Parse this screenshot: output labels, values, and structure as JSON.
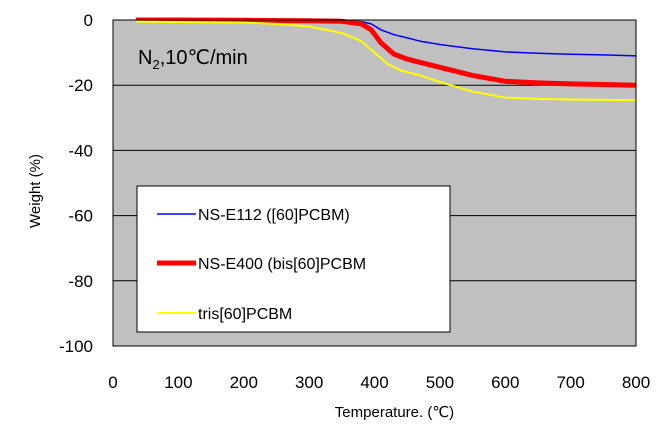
{
  "chart_data": {
    "type": "line",
    "title": "",
    "xlabel": "Temperature. (℃)",
    "ylabel": "Weight (%)",
    "xlim": [
      0,
      800
    ],
    "ylim": [
      -100,
      0
    ],
    "x_ticks": [
      "0",
      "100",
      "200",
      "300",
      "400",
      "500",
      "600",
      "700",
      "800"
    ],
    "y_ticks": [
      "0",
      "-20",
      "-40",
      "-60",
      "-80",
      "-100"
    ],
    "grid": "horizontal",
    "background": "#c0c0c0",
    "annotation": {
      "base": "N",
      "sub": "2",
      "rest": ",10℃/min"
    },
    "legend_position": "lower-left",
    "series": [
      {
        "name": "NS-E112 ([60]PCBM)",
        "color": "#0000ff",
        "width": 1.5,
        "x": [
          35,
          100,
          200,
          300,
          350,
          380,
          395,
          410,
          430,
          450,
          470,
          500,
          550,
          600,
          650,
          700,
          750,
          800
        ],
        "y": [
          0.5,
          0.3,
          0.0,
          -0.2,
          -0.3,
          -0.5,
          -1.2,
          -3.0,
          -4.5,
          -5.5,
          -6.5,
          -7.5,
          -8.8,
          -9.8,
          -10.2,
          -10.5,
          -10.7,
          -11.0
        ]
      },
      {
        "name": "NS-E400 (bis[60]PCBM",
        "color": "#ff0000",
        "width": 5,
        "x": [
          35,
          100,
          200,
          300,
          350,
          380,
          395,
          410,
          430,
          450,
          470,
          500,
          550,
          600,
          650,
          700,
          750,
          800
        ],
        "y": [
          0.0,
          0.0,
          -0.1,
          -0.2,
          -0.4,
          -1.2,
          -3.0,
          -7.0,
          -10.5,
          -12.0,
          -13.0,
          -14.5,
          -17.0,
          -18.8,
          -19.3,
          -19.6,
          -19.8,
          -20.0
        ]
      },
      {
        "name": "tris[60]PCBM",
        "color": "#ffff00",
        "width": 2,
        "x": [
          35,
          100,
          200,
          250,
          300,
          350,
          380,
          400,
          420,
          440,
          470,
          500,
          550,
          600,
          650,
          700,
          750,
          800
        ],
        "y": [
          -0.5,
          -0.6,
          -0.8,
          -1.2,
          -2.0,
          -4.0,
          -6.5,
          -10.0,
          -13.5,
          -15.5,
          -17.0,
          -19.0,
          -22.0,
          -23.8,
          -24.2,
          -24.4,
          -24.5,
          -24.6
        ]
      }
    ]
  }
}
